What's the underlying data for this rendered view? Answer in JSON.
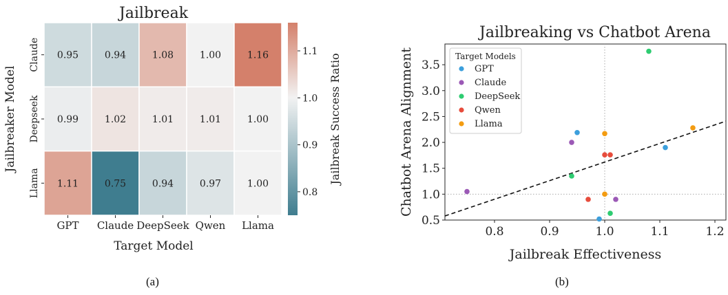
{
  "captions": {
    "left": "(a)",
    "right": "(b)"
  },
  "chart_data": [
    {
      "type": "heatmap",
      "title": "Jailbreak",
      "xlabel": "Target Model",
      "ylabel": "Jailbreaker Model",
      "x_categories": [
        "GPT",
        "Claude",
        "DeepSeek",
        "Qwen",
        "Llama"
      ],
      "y_categories": [
        "Claude",
        "Deepseek",
        "Llama"
      ],
      "values": [
        [
          0.95,
          0.94,
          1.08,
          1.0,
          1.16
        ],
        [
          0.99,
          1.02,
          1.01,
          1.01,
          1.0
        ],
        [
          1.11,
          0.75,
          0.94,
          0.97,
          1.0
        ]
      ],
      "colorbar": {
        "label": "Jailbreak Success Ratio",
        "range": [
          0.75,
          1.16
        ],
        "ticks": [
          0.8,
          0.9,
          1.0,
          1.1
        ],
        "tick_labels": [
          "0.8",
          "0.9",
          "1.0",
          "1.1"
        ],
        "colormap": {
          "low": "#3f7d8f",
          "mid": "#f2f2f2",
          "high": "#d4806b"
        }
      }
    },
    {
      "type": "scatter",
      "title": "Jailbreaking vs Chatbot Arena",
      "xlabel": "Jailbreak Effectiveness",
      "ylabel": "Chatbot Arena Alignment",
      "xlim": [
        0.71,
        1.22
      ],
      "ylim": [
        0.5,
        3.9
      ],
      "x_ticks": [
        0.8,
        0.9,
        1.0,
        1.1,
        1.2
      ],
      "x_tick_labels": [
        "0.8",
        "0.9",
        "1.0",
        "1.1",
        "1.2"
      ],
      "y_ticks": [
        0.5,
        1.0,
        1.5,
        2.0,
        2.5,
        3.0,
        3.5
      ],
      "y_tick_labels": [
        "0.5",
        "1.0",
        "1.5",
        "2.0",
        "2.5",
        "3.0",
        "3.5"
      ],
      "reference_lines": {
        "x": 1.0,
        "y": 1.0,
        "style": "dotted"
      },
      "trend_line": {
        "slope": 3.59,
        "intercept": -1.97,
        "style": "dashed"
      },
      "legend": {
        "title": "Target Models",
        "position": "top-left"
      },
      "series": [
        {
          "name": "GPT",
          "color": "#3c9fdc",
          "points": [
            [
              0.95,
              2.19
            ],
            [
              1.11,
              1.9
            ],
            [
              0.99,
              0.52
            ]
          ]
        },
        {
          "name": "Claude",
          "color": "#9b59b6",
          "points": [
            [
              0.94,
              2.0
            ],
            [
              0.75,
              1.05
            ],
            [
              1.02,
              0.9
            ]
          ]
        },
        {
          "name": "DeepSeek",
          "color": "#2ecc71",
          "points": [
            [
              1.08,
              3.76
            ],
            [
              0.94,
              1.35
            ],
            [
              1.01,
              0.63
            ]
          ]
        },
        {
          "name": "Qwen",
          "color": "#e74c3c",
          "points": [
            [
              1.0,
              1.76
            ],
            [
              1.01,
              1.76
            ],
            [
              0.97,
              0.9
            ]
          ]
        },
        {
          "name": "Llama",
          "color": "#f39c12",
          "points": [
            [
              1.16,
              2.28
            ],
            [
              1.0,
              2.17
            ],
            [
              1.0,
              1.0
            ]
          ]
        }
      ]
    }
  ]
}
